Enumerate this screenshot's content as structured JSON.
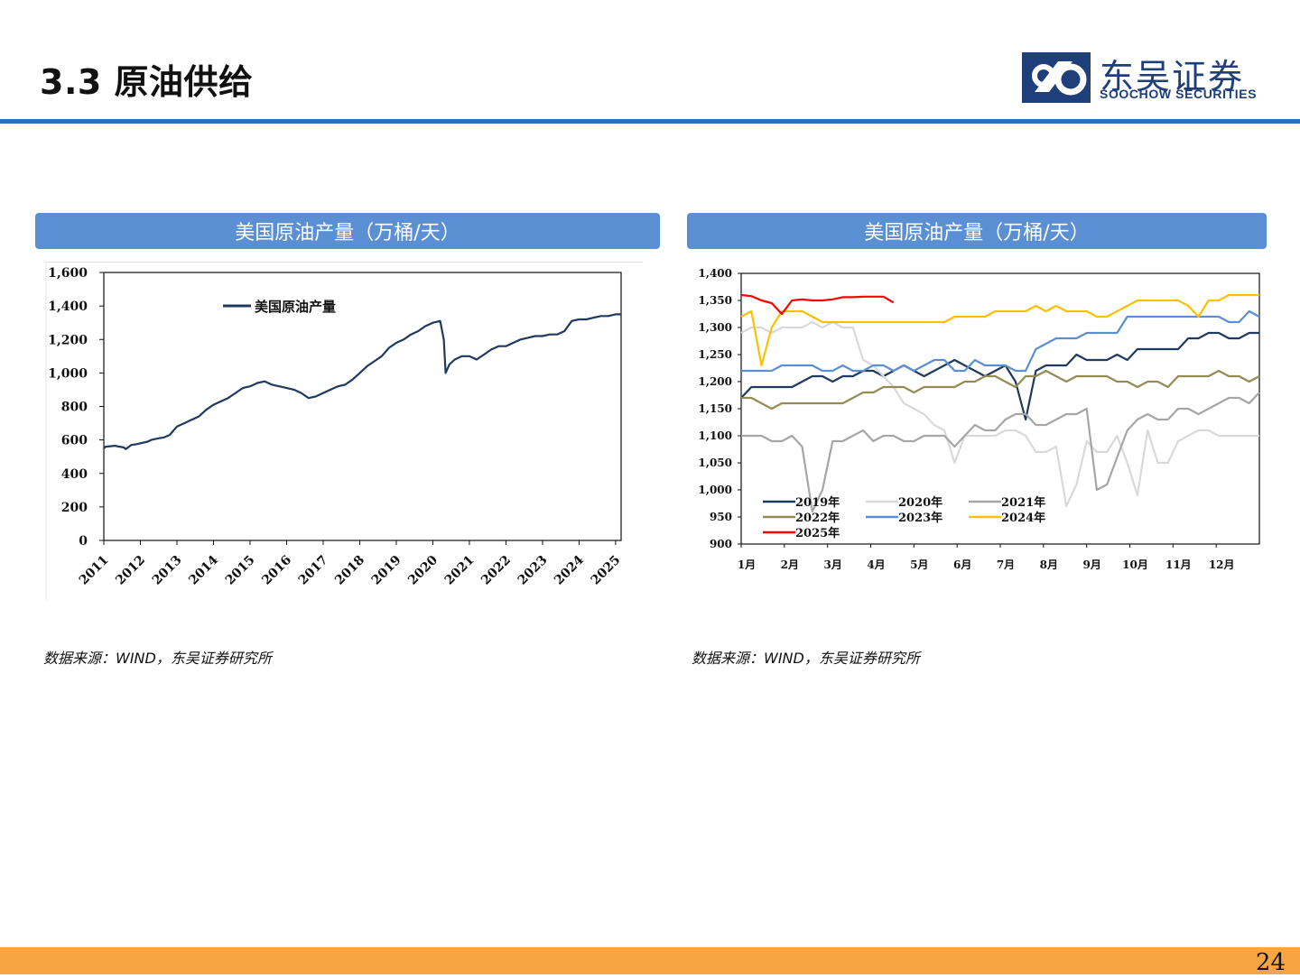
{
  "slide": {
    "title": "3.3 原油供给",
    "page_number": "24"
  },
  "logo": {
    "cn": "东吴证券",
    "en": "SOOCHOW SECURITIES"
  },
  "colors": {
    "title_rule": "#2f6db5",
    "panel_header": "#5b8fd3",
    "footer": "#f7a541"
  },
  "panels": [
    {
      "header": "美国原油产量（万桶/天）",
      "source": "数据来源：WIND，东吴证券研究所"
    },
    {
      "header": "美国原油产量（万桶/天）",
      "source": "数据来源：WIND，东吴证券研究所"
    }
  ],
  "chart_data": [
    {
      "type": "line",
      "title": "",
      "xlabel": "",
      "ylabel": "",
      "ylim": [
        0,
        1600
      ],
      "yticks": [
        0,
        200,
        400,
        600,
        800,
        1000,
        1200,
        1400,
        1600
      ],
      "ytick_labels": [
        "0",
        "200",
        "400",
        "600",
        "800",
        "1,000",
        "1,200",
        "1,400",
        "1,600"
      ],
      "xlim": [
        2011,
        2025.15
      ],
      "x_tick_labels": [
        "2011",
        "2012",
        "2013",
        "2014",
        "2015",
        "2016",
        "2017",
        "2018",
        "2019",
        "2020",
        "2021",
        "2022",
        "2023",
        "2024",
        "2025"
      ],
      "legend_position": "top-left",
      "grid": false,
      "series": [
        {
          "name": "美国原油产量",
          "color": "#1f3a5f",
          "x": [
            2011.0,
            2011.05,
            2011.3,
            2011.55,
            2011.6,
            2011.75,
            2011.9,
            2012.2,
            2012.3,
            2012.5,
            2012.65,
            2012.8,
            2013.0,
            2013.2,
            2013.4,
            2013.6,
            2013.8,
            2014.0,
            2014.2,
            2014.4,
            2014.6,
            2014.8,
            2015.0,
            2015.2,
            2015.4,
            2015.6,
            2015.8,
            2016.0,
            2016.2,
            2016.4,
            2016.6,
            2016.8,
            2017.0,
            2017.2,
            2017.4,
            2017.6,
            2017.8,
            2018.0,
            2018.2,
            2018.4,
            2018.6,
            2018.8,
            2019.0,
            2019.2,
            2019.4,
            2019.6,
            2019.8,
            2020.0,
            2020.2,
            2020.3,
            2020.35,
            2020.45,
            2020.6,
            2020.8,
            2021.0,
            2021.2,
            2021.4,
            2021.6,
            2021.8,
            2022.0,
            2022.2,
            2022.4,
            2022.6,
            2022.8,
            2023.0,
            2023.2,
            2023.4,
            2023.6,
            2023.8,
            2024.0,
            2024.2,
            2024.4,
            2024.6,
            2024.8,
            2025.0,
            2025.15
          ],
          "values": [
            550,
            560,
            565,
            555,
            545,
            570,
            575,
            590,
            600,
            610,
            615,
            630,
            680,
            700,
            720,
            740,
            780,
            810,
            830,
            850,
            880,
            910,
            920,
            940,
            950,
            930,
            920,
            910,
            900,
            880,
            850,
            860,
            880,
            900,
            920,
            930,
            960,
            1000,
            1040,
            1070,
            1100,
            1150,
            1180,
            1200,
            1230,
            1250,
            1280,
            1300,
            1310,
            1200,
            1000,
            1050,
            1080,
            1100,
            1100,
            1080,
            1110,
            1140,
            1160,
            1160,
            1180,
            1200,
            1210,
            1220,
            1220,
            1230,
            1230,
            1250,
            1310,
            1320,
            1320,
            1330,
            1340,
            1340,
            1350,
            1350
          ]
        }
      ]
    },
    {
      "type": "line",
      "title": "",
      "xlabel": "",
      "ylabel": "",
      "ylim": [
        900,
        1400
      ],
      "yticks": [
        900,
        950,
        1000,
        1050,
        1100,
        1150,
        1200,
        1250,
        1300,
        1350,
        1400
      ],
      "ytick_labels": [
        "900",
        "950",
        "1,000",
        "1,050",
        "1,100",
        "1,150",
        "1,200",
        "1,250",
        "1,300",
        "1,350",
        "1,400"
      ],
      "x_tick_labels": [
        "1月",
        "2月",
        "3月",
        "4月",
        "5月",
        "6月",
        "7月",
        "8月",
        "9月",
        "10月",
        "11月",
        "12月"
      ],
      "x_range_weeks": [
        1,
        52
      ],
      "legend_position": "bottom-left",
      "grid": false,
      "series": [
        {
          "name": "2019年",
          "color": "#1f3a5f",
          "values": [
            1170,
            1190,
            1190,
            1190,
            1190,
            1190,
            1200,
            1210,
            1210,
            1200,
            1210,
            1210,
            1220,
            1220,
            1210,
            1220,
            1230,
            1220,
            1210,
            1220,
            1230,
            1240,
            1230,
            1220,
            1210,
            1220,
            1230,
            1200,
            1130,
            1220,
            1230,
            1230,
            1230,
            1250,
            1240,
            1240,
            1240,
            1250,
            1240,
            1260,
            1260,
            1260,
            1260,
            1260,
            1280,
            1280,
            1290,
            1290,
            1280,
            1280,
            1290,
            1290
          ]
        },
        {
          "name": "2020年",
          "color": "#d9d9d9",
          "values": [
            1290,
            1300,
            1300,
            1290,
            1300,
            1300,
            1300,
            1310,
            1300,
            1310,
            1300,
            1300,
            1240,
            1230,
            1210,
            1190,
            1160,
            1150,
            1140,
            1120,
            1110,
            1050,
            1100,
            1100,
            1100,
            1100,
            1110,
            1110,
            1100,
            1070,
            1070,
            1080,
            970,
            1010,
            1090,
            1070,
            1070,
            1100,
            1050,
            990,
            1110,
            1050,
            1050,
            1090,
            1100,
            1110,
            1110,
            1100,
            1100,
            1100,
            1100,
            1100
          ]
        },
        {
          "name": "2021年",
          "color": "#a6a6a6",
          "values": [
            1100,
            1100,
            1100,
            1090,
            1090,
            1100,
            1080,
            960,
            1000,
            1090,
            1090,
            1100,
            1110,
            1090,
            1100,
            1100,
            1090,
            1090,
            1100,
            1100,
            1100,
            1080,
            1100,
            1120,
            1110,
            1110,
            1130,
            1140,
            1140,
            1120,
            1120,
            1130,
            1140,
            1140,
            1150,
            1000,
            1010,
            1060,
            1110,
            1130,
            1140,
            1130,
            1130,
            1150,
            1150,
            1140,
            1150,
            1160,
            1170,
            1170,
            1160,
            1180
          ]
        },
        {
          "name": "2022年",
          "color": "#948a54",
          "values": [
            1170,
            1170,
            1160,
            1150,
            1160,
            1160,
            1160,
            1160,
            1160,
            1160,
            1160,
            1170,
            1180,
            1180,
            1190,
            1190,
            1190,
            1180,
            1190,
            1190,
            1190,
            1190,
            1200,
            1200,
            1210,
            1210,
            1200,
            1190,
            1210,
            1210,
            1220,
            1210,
            1200,
            1210,
            1210,
            1210,
            1210,
            1200,
            1200,
            1190,
            1200,
            1200,
            1190,
            1210,
            1210,
            1210,
            1210,
            1220,
            1210,
            1210,
            1200,
            1210
          ]
        },
        {
          "name": "2023年",
          "color": "#5b8fd3",
          "values": [
            1220,
            1220,
            1220,
            1220,
            1230,
            1230,
            1230,
            1230,
            1220,
            1220,
            1230,
            1220,
            1220,
            1230,
            1230,
            1220,
            1230,
            1220,
            1230,
            1240,
            1240,
            1220,
            1220,
            1240,
            1230,
            1230,
            1230,
            1220,
            1220,
            1260,
            1270,
            1280,
            1280,
            1280,
            1290,
            1290,
            1290,
            1290,
            1320,
            1320,
            1320,
            1320,
            1320,
            1320,
            1320,
            1320,
            1320,
            1320,
            1310,
            1310,
            1330,
            1320
          ]
        },
        {
          "name": "2024年",
          "color": "#ffc000",
          "values": [
            1320,
            1330,
            1230,
            1300,
            1330,
            1330,
            1330,
            1320,
            1310,
            1310,
            1310,
            1310,
            1310,
            1310,
            1310,
            1310,
            1310,
            1310,
            1310,
            1310,
            1310,
            1320,
            1320,
            1320,
            1320,
            1330,
            1330,
            1330,
            1330,
            1340,
            1330,
            1340,
            1330,
            1330,
            1330,
            1320,
            1320,
            1330,
            1340,
            1350,
            1350,
            1350,
            1350,
            1350,
            1340,
            1320,
            1350,
            1350,
            1360,
            1360,
            1360,
            1360
          ]
        },
        {
          "name": "2025年",
          "color": "#ff0000",
          "values": [
            1360,
            1358,
            1350,
            1345,
            1325,
            1350,
            1352,
            1350,
            1350,
            1352,
            1356,
            1356,
            1357,
            1357,
            1357,
            1346
          ]
        }
      ]
    }
  ]
}
